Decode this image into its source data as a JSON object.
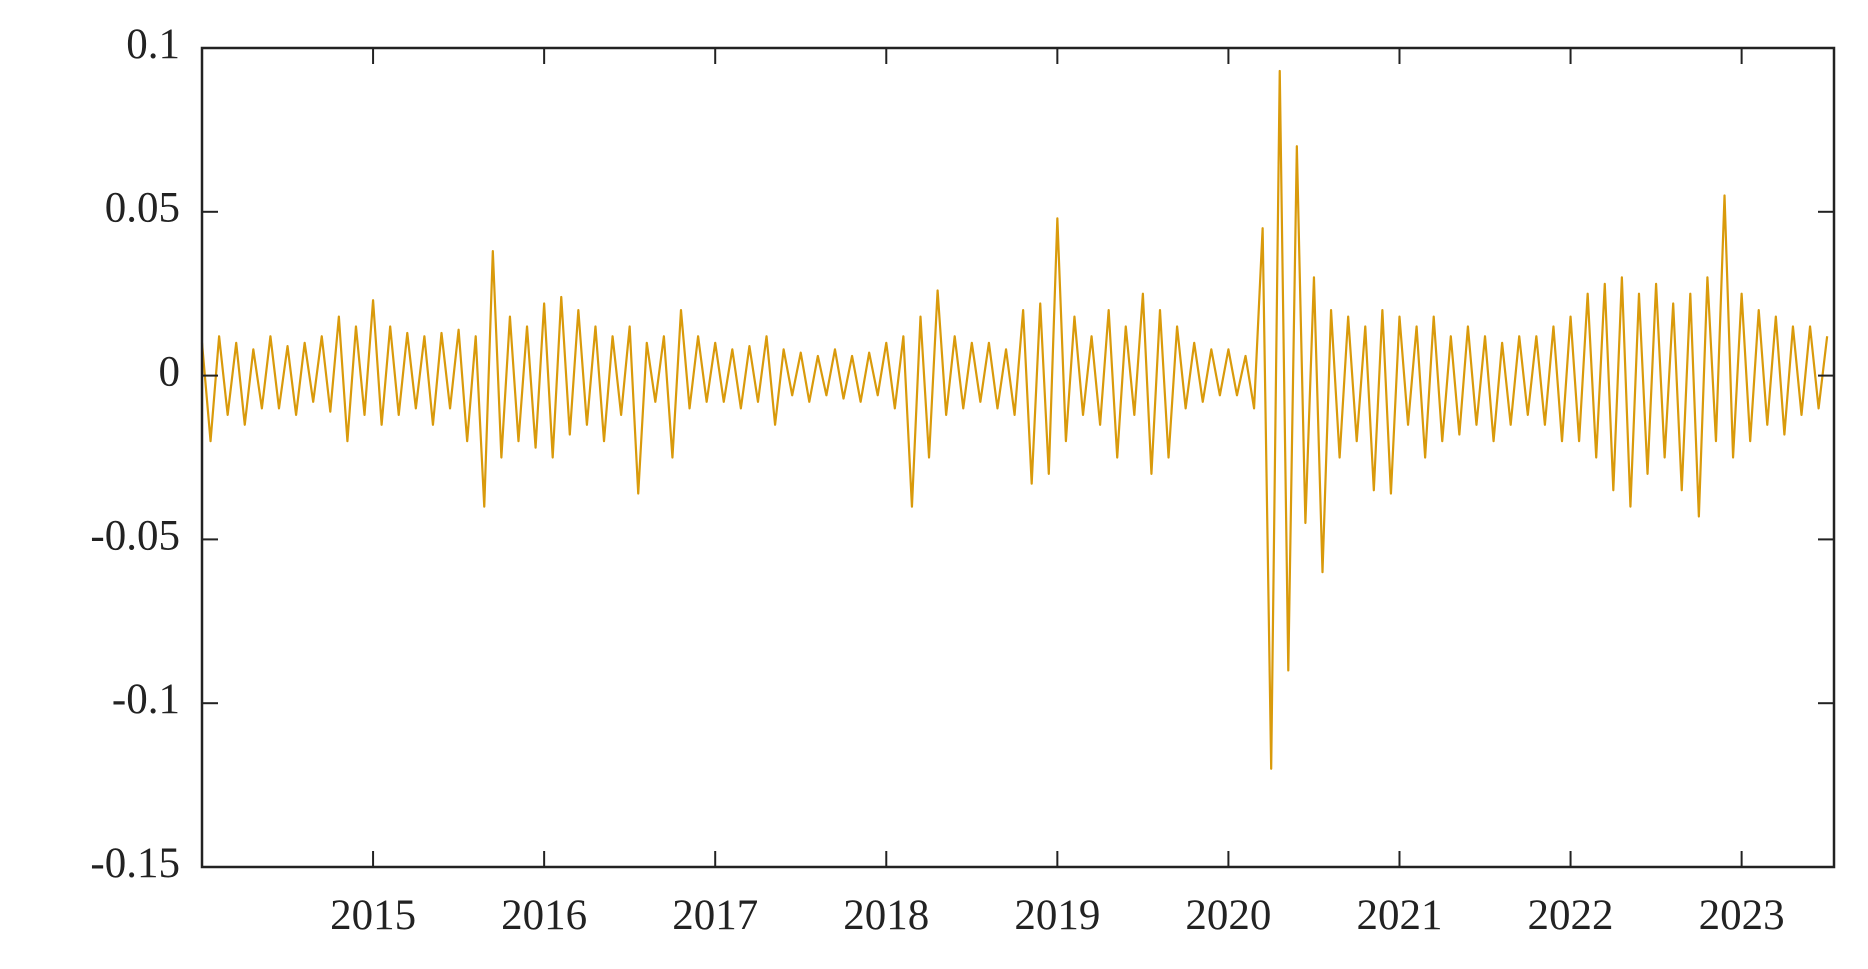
{
  "chart_data": {
    "type": "line",
    "color": "#d99a0b",
    "xlim": [
      2014,
      2023.54
    ],
    "ylim": [
      -0.15,
      0.1
    ],
    "xticks": [
      2015,
      2016,
      2017,
      2018,
      2019,
      2020,
      2021,
      2022,
      2023
    ],
    "yticks": [
      0.1,
      0.05,
      0,
      -0.05,
      -0.1,
      -0.15
    ],
    "x": [
      2014,
      2014.05,
      2014.1,
      2014.15,
      2014.2,
      2014.25,
      2014.3,
      2014.35,
      2014.4,
      2014.45,
      2014.5,
      2014.55,
      2014.6,
      2014.65,
      2014.7,
      2014.75,
      2014.8,
      2014.85,
      2014.9,
      2014.95,
      2015,
      2015.05,
      2015.1,
      2015.15,
      2015.2,
      2015.25,
      2015.3,
      2015.35,
      2015.4,
      2015.45,
      2015.5,
      2015.55,
      2015.6,
      2015.65,
      2015.7,
      2015.75,
      2015.8,
      2015.85,
      2015.9,
      2015.95,
      2016,
      2016.05,
      2016.1,
      2016.15,
      2016.2,
      2016.25,
      2016.3,
      2016.35,
      2016.4,
      2016.45,
      2016.5,
      2016.55,
      2016.6,
      2016.65,
      2016.7,
      2016.75,
      2016.8,
      2016.85,
      2016.9,
      2016.95,
      2017,
      2017.05,
      2017.1,
      2017.15,
      2017.2,
      2017.25,
      2017.3,
      2017.35,
      2017.4,
      2017.45,
      2017.5,
      2017.55,
      2017.6,
      2017.65,
      2017.7,
      2017.75,
      2017.8,
      2017.85,
      2017.9,
      2017.95,
      2018,
      2018.05,
      2018.1,
      2018.15,
      2018.2,
      2018.25,
      2018.3,
      2018.35,
      2018.4,
      2018.45,
      2018.5,
      2018.55,
      2018.6,
      2018.65,
      2018.7,
      2018.75,
      2018.8,
      2018.85,
      2018.9,
      2018.95,
      2019,
      2019.05,
      2019.1,
      2019.15,
      2019.2,
      2019.25,
      2019.3,
      2019.35,
      2019.4,
      2019.45,
      2019.5,
      2019.55,
      2019.6,
      2019.65,
      2019.7,
      2019.75,
      2019.8,
      2019.85,
      2019.9,
      2019.95,
      2020,
      2020.05,
      2020.1,
      2020.15,
      2020.2,
      2020.25,
      2020.3,
      2020.35,
      2020.4,
      2020.45,
      2020.5,
      2020.55,
      2020.6,
      2020.65,
      2020.7,
      2020.75,
      2020.8,
      2020.85,
      2020.9,
      2020.95,
      2021,
      2021.05,
      2021.1,
      2021.15,
      2021.2,
      2021.25,
      2021.3,
      2021.35,
      2021.4,
      2021.45,
      2021.5,
      2021.55,
      2021.6,
      2021.65,
      2021.7,
      2021.75,
      2021.8,
      2021.85,
      2021.9,
      2021.95,
      2022,
      2022.05,
      2022.1,
      2022.15,
      2022.2,
      2022.25,
      2022.3,
      2022.35,
      2022.4,
      2022.45,
      2022.5,
      2022.55,
      2022.6,
      2022.65,
      2022.7,
      2022.75,
      2022.8,
      2022.85,
      2022.9,
      2022.95,
      2023,
      2023.05,
      2023.1,
      2023.15,
      2023.2,
      2023.25,
      2023.3,
      2023.35,
      2023.4,
      2023.45,
      2023.5
    ],
    "values": [
      0.01,
      -0.02,
      0.012,
      -0.012,
      0.01,
      -0.015,
      0.008,
      -0.01,
      0.012,
      -0.01,
      0.009,
      -0.012,
      0.01,
      -0.008,
      0.012,
      -0.011,
      0.018,
      -0.02,
      0.015,
      -0.012,
      0.023,
      -0.015,
      0.015,
      -0.012,
      0.013,
      -0.01,
      0.012,
      -0.015,
      0.013,
      -0.01,
      0.014,
      -0.02,
      0.012,
      -0.04,
      0.038,
      -0.025,
      0.018,
      -0.02,
      0.015,
      -0.022,
      0.022,
      -0.025,
      0.024,
      -0.018,
      0.02,
      -0.015,
      0.015,
      -0.02,
      0.012,
      -0.012,
      0.015,
      -0.036,
      0.01,
      -0.008,
      0.012,
      -0.025,
      0.02,
      -0.01,
      0.012,
      -0.008,
      0.01,
      -0.008,
      0.008,
      -0.01,
      0.009,
      -0.008,
      0.012,
      -0.015,
      0.008,
      -0.006,
      0.007,
      -0.008,
      0.006,
      -0.006,
      0.008,
      -0.007,
      0.006,
      -0.008,
      0.007,
      -0.006,
      0.01,
      -0.01,
      0.012,
      -0.04,
      0.018,
      -0.025,
      0.026,
      -0.012,
      0.012,
      -0.01,
      0.01,
      -0.008,
      0.01,
      -0.01,
      0.008,
      -0.012,
      0.02,
      -0.033,
      0.022,
      -0.03,
      0.048,
      -0.02,
      0.018,
      -0.012,
      0.012,
      -0.015,
      0.02,
      -0.025,
      0.015,
      -0.012,
      0.025,
      -0.03,
      0.02,
      -0.025,
      0.015,
      -0.01,
      0.01,
      -0.008,
      0.008,
      -0.006,
      0.008,
      -0.006,
      0.006,
      -0.01,
      0.045,
      -0.12,
      0.093,
      -0.09,
      0.07,
      -0.045,
      0.03,
      -0.06,
      0.02,
      -0.025,
      0.018,
      -0.02,
      0.015,
      -0.035,
      0.02,
      -0.036,
      0.018,
      -0.015,
      0.015,
      -0.025,
      0.018,
      -0.02,
      0.012,
      -0.018,
      0.015,
      -0.015,
      0.012,
      -0.02,
      0.01,
      -0.015,
      0.012,
      -0.012,
      0.012,
      -0.015,
      0.015,
      -0.02,
      0.018,
      -0.02,
      0.025,
      -0.025,
      0.028,
      -0.035,
      0.03,
      -0.04,
      0.025,
      -0.03,
      0.028,
      -0.025,
      0.022,
      -0.035,
      0.025,
      -0.043,
      0.03,
      -0.02,
      0.055,
      -0.025,
      0.025,
      -0.02,
      0.02,
      -0.015,
      0.018,
      -0.018,
      0.015,
      -0.012,
      0.015,
      -0.01,
      0.012
    ]
  }
}
